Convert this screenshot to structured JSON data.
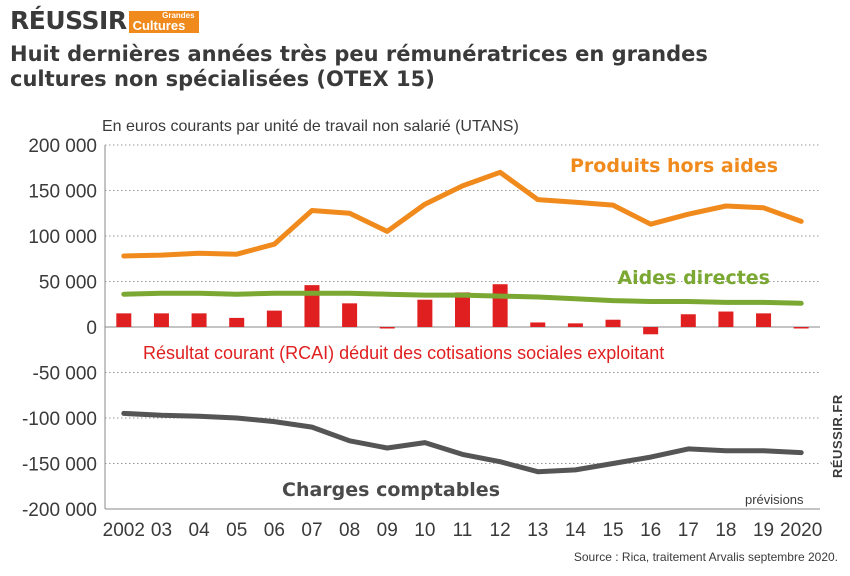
{
  "logo": {
    "main": "RÉUSSIR",
    "tag_top": "Grandes",
    "tag_bottom": "Cultures"
  },
  "title": "Huit dernières années très peu rémunératrices en grandes cultures non spécialisées (OTEX 15)",
  "vertical_brand": "RÉUSSIR.FR",
  "source": "Source : Rica, traitement Arvalis septembre 2020.",
  "chart_data": {
    "type": "line",
    "subtitle": "En euros courants par unité de travail non salarié (UTANS)",
    "x": [
      "2002",
      "03",
      "04",
      "05",
      "06",
      "07",
      "08",
      "09",
      "10",
      "11",
      "12",
      "13",
      "14",
      "15",
      "16",
      "17",
      "18",
      "19",
      "2020"
    ],
    "ylim": [
      -200000,
      200000
    ],
    "yticks": [
      "200 000",
      "150 000",
      "100 000",
      "50 000",
      "0",
      "-50 000",
      "-100 000",
      "-150 000",
      "-200 000"
    ],
    "forecast_label": "prévisions",
    "grid": true,
    "series": [
      {
        "name": "Produits hors aides",
        "kind": "line",
        "color": "#f08a1c",
        "values": [
          78000,
          79000,
          81000,
          80000,
          91000,
          128000,
          125000,
          105000,
          135000,
          155000,
          170000,
          140000,
          137000,
          134000,
          113000,
          124000,
          133000,
          131000,
          116000
        ]
      },
      {
        "name": "Aides directes",
        "kind": "line",
        "color": "#7aa832",
        "values": [
          36000,
          37000,
          37000,
          36000,
          37000,
          37000,
          37000,
          36000,
          35000,
          35000,
          34000,
          33000,
          31000,
          29000,
          28000,
          28000,
          27000,
          27000,
          26000
        ]
      },
      {
        "name": "Résultat courant  (RCAI) déduit des cotisations sociales exploitant",
        "kind": "bar",
        "color": "#e02020",
        "values": [
          15000,
          15000,
          15000,
          10000,
          18000,
          46000,
          26000,
          -1000,
          30000,
          38000,
          47000,
          5000,
          4000,
          8000,
          -8000,
          14000,
          17000,
          15000,
          -1000
        ]
      },
      {
        "name": "Charges comptables",
        "kind": "line",
        "color": "#555555",
        "values": [
          -95000,
          -97000,
          -98000,
          -100000,
          -104000,
          -110000,
          -125000,
          -133000,
          -127000,
          -140000,
          -148000,
          -159000,
          -157000,
          -150000,
          -143000,
          -134000,
          -136000,
          -136000,
          -138000
        ]
      }
    ]
  }
}
